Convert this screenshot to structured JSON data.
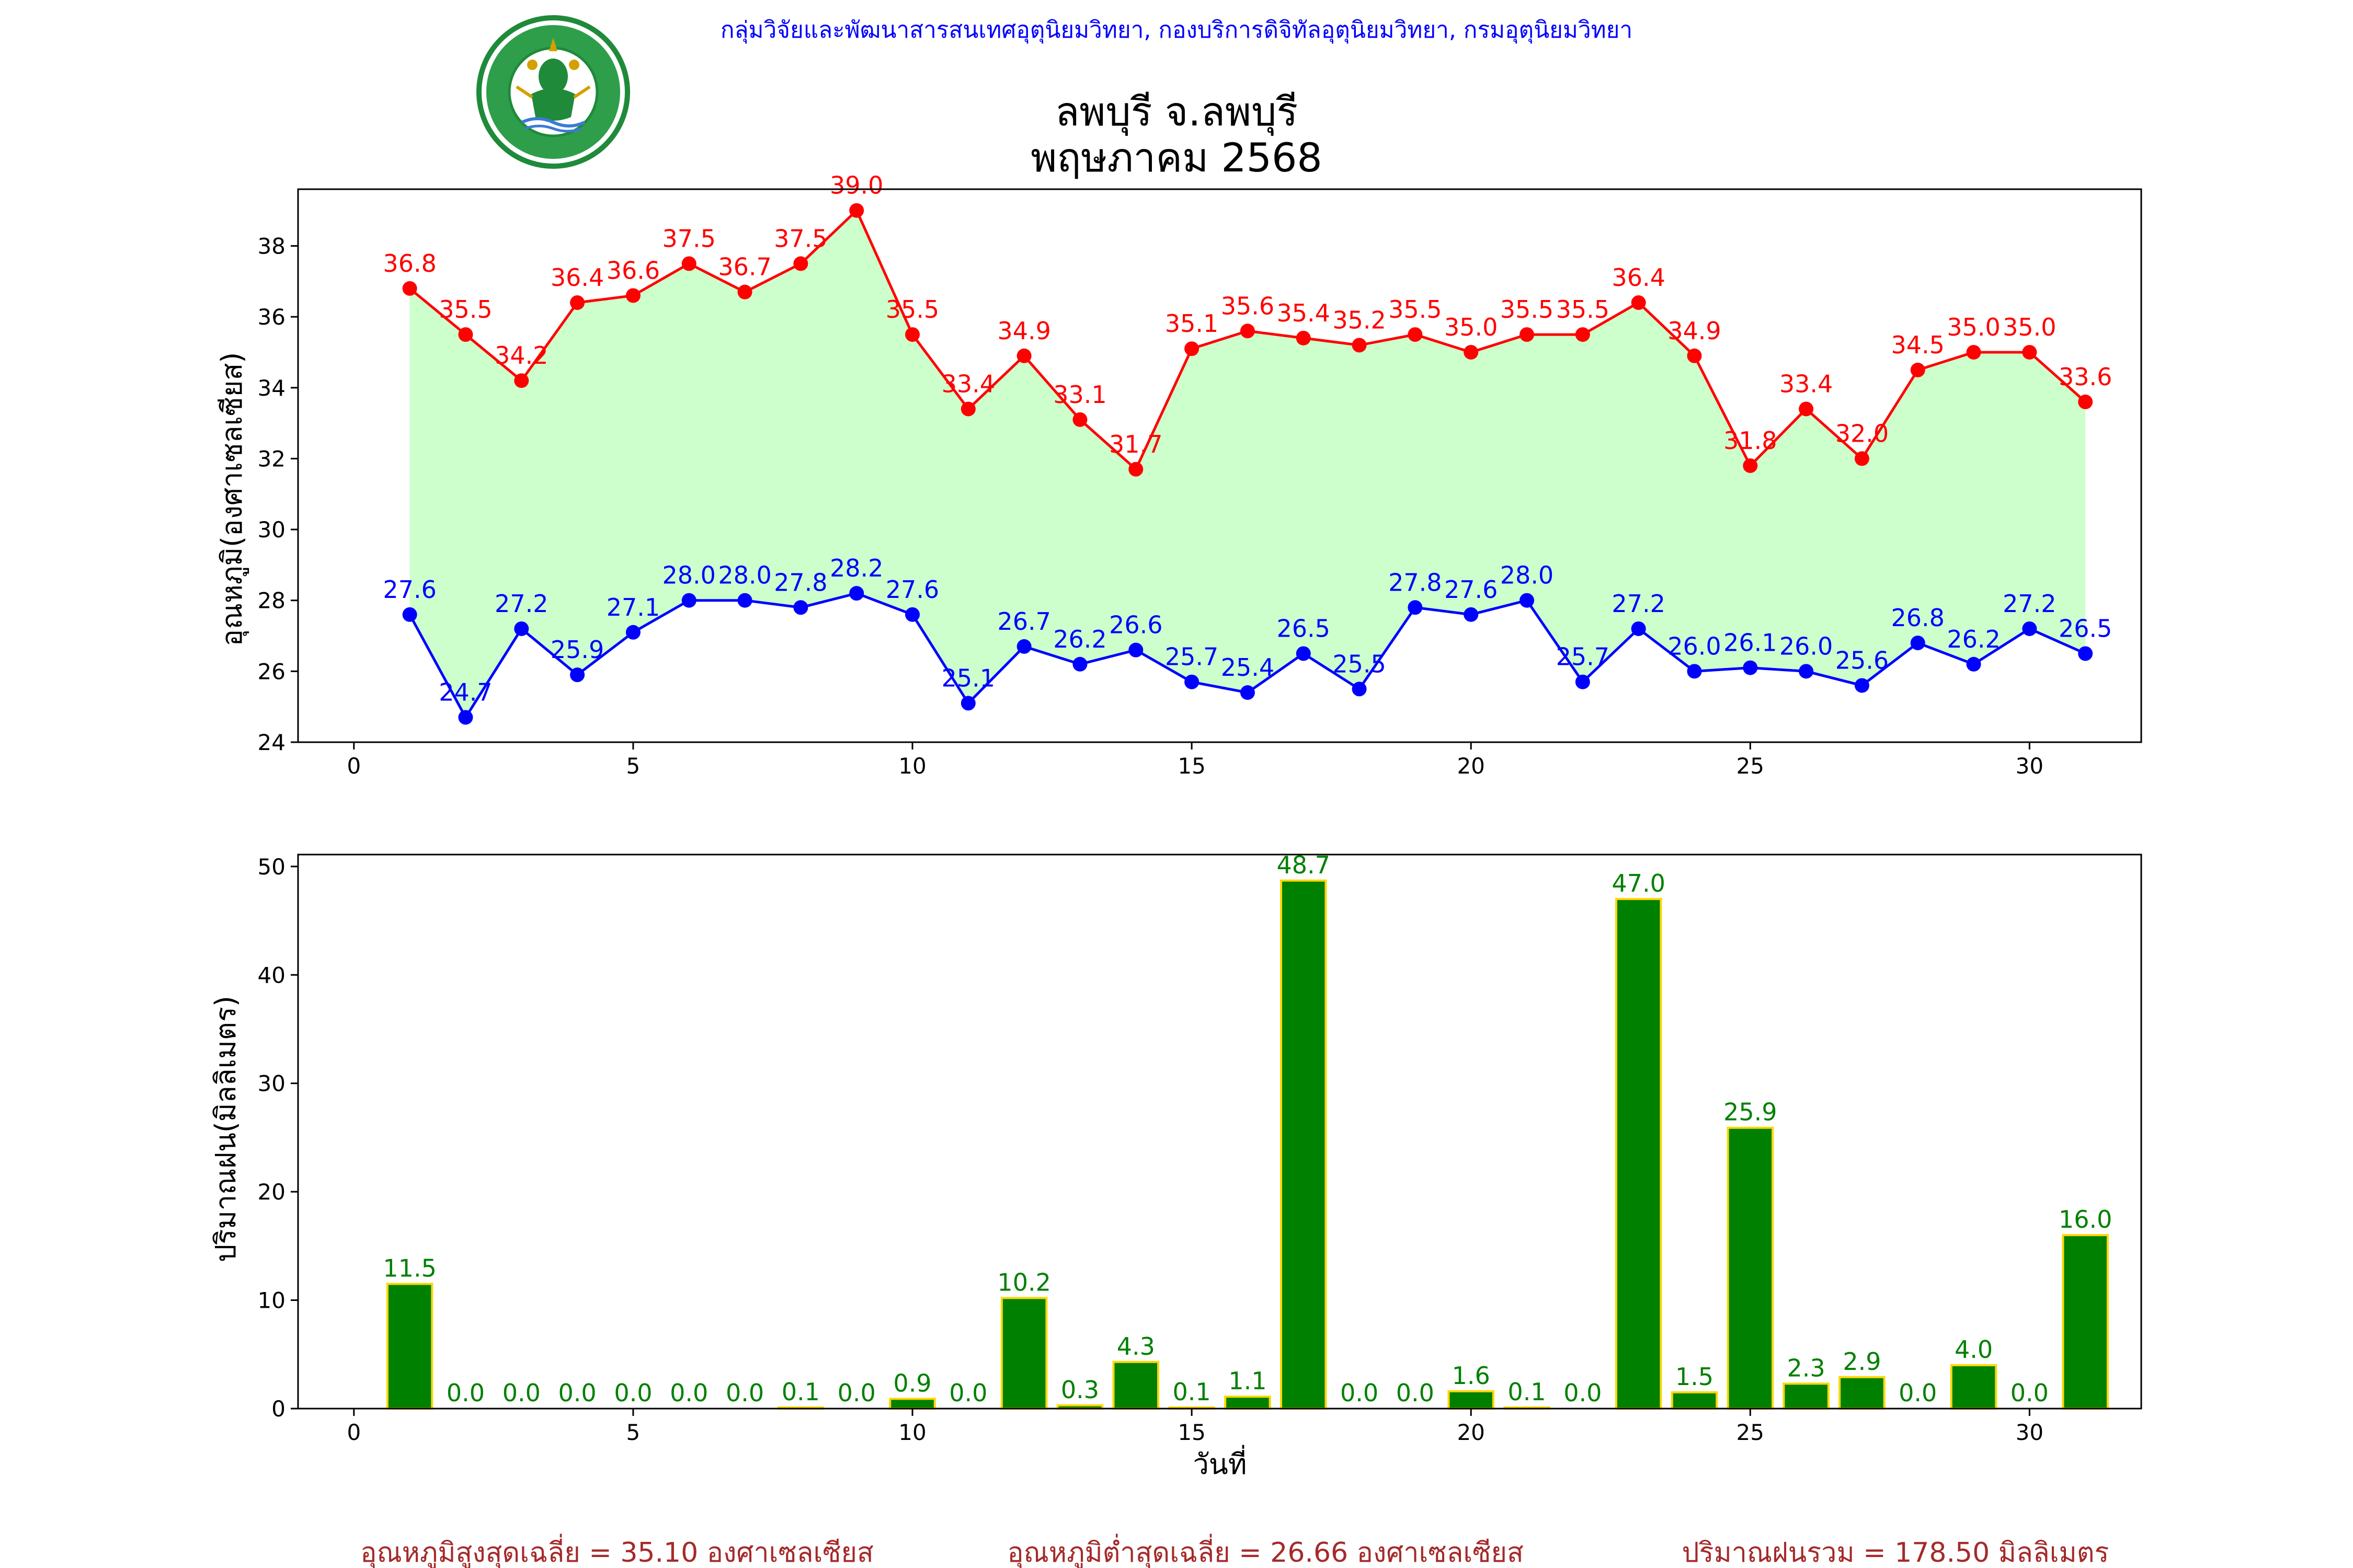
{
  "header": {
    "org_line": "กลุ่มวิจัยและพัฒนาสารสนเทศอุตุนิยมวิทยา, กองบริการดิจิทัลอุตุนิยมวิทยา, กรมอุตุนิยมวิทยา",
    "logo_text": "กรมอุตุนิยมวิทยา METEOROLOGICAL DEPARTMENT"
  },
  "colors": {
    "header_text": "#0000ff",
    "max_line": "#ff0000",
    "min_line": "#0000ff",
    "fill": "#ccffcc",
    "bar_fill": "#008000",
    "bar_edge": "#ffd700",
    "bar_label": "#008000",
    "footer_text": "#a52a2a",
    "logo_green": "#1f8a3a"
  },
  "footer": {
    "avg_max": "อุณหภูมิสูงสุดเฉลี่ย = 35.10 องศาเซลเซียส",
    "avg_min": "อุณหภูมิต่ำสุดเฉลี่ย = 26.66 องศาเซลเซียส",
    "total_rain": "ปริมาณฝนรวม = 178.50 มิลลิเมตร"
  },
  "chart_data": [
    {
      "type": "line",
      "title": "ลพบุรี จ.ลพบุรี",
      "subtitle": "พฤษภาคม 2568",
      "ylabel": "อุณหภูมิ(องศาเซลเซียส)",
      "xlabel": "",
      "xlim": [
        -1,
        32
      ],
      "ylim": [
        24,
        39.6
      ],
      "xticks": [
        0,
        5,
        10,
        15,
        20,
        25,
        30
      ],
      "yticks": [
        24,
        26,
        28,
        30,
        32,
        34,
        36,
        38
      ],
      "fill_between": true,
      "x": [
        1,
        2,
        3,
        4,
        5,
        6,
        7,
        8,
        9,
        10,
        11,
        12,
        13,
        14,
        15,
        16,
        17,
        18,
        19,
        20,
        21,
        22,
        23,
        24,
        25,
        26,
        27,
        28,
        29,
        30,
        31
      ],
      "series": [
        {
          "key": "max",
          "values": [
            36.8,
            35.5,
            34.2,
            36.4,
            36.6,
            37.5,
            36.7,
            37.5,
            39.0,
            35.5,
            33.4,
            34.9,
            33.1,
            31.7,
            35.1,
            35.6,
            35.4,
            35.2,
            35.5,
            35.0,
            35.5,
            35.5,
            36.4,
            34.9,
            31.8,
            33.4,
            32.0,
            34.5,
            35.0,
            35.0,
            33.6
          ],
          "labels": [
            "36.8",
            "35.5",
            "34.2",
            "36.4",
            "36.6",
            "37.5",
            "36.7",
            "37.5",
            "39.0",
            "35.5",
            "33.4",
            "34.9",
            "33.1",
            "31.7",
            "35.1",
            "35.6",
            "35.4",
            "35.2",
            "35.5",
            "35.0",
            "35.5",
            "35.5",
            "36.4",
            "34.9",
            "31.8",
            "33.4",
            "32.0",
            "34.5",
            "35.0",
            "35.0",
            "33.6"
          ]
        },
        {
          "key": "min",
          "values": [
            27.6,
            24.7,
            27.2,
            25.9,
            27.1,
            28.0,
            28.0,
            27.8,
            28.2,
            27.6,
            25.1,
            26.7,
            26.2,
            26.6,
            25.7,
            25.4,
            26.5,
            25.5,
            27.8,
            27.6,
            28.0,
            25.7,
            27.2,
            26.0,
            26.1,
            26.0,
            25.6,
            26.8,
            26.2,
            27.2,
            26.5
          ],
          "labels": [
            "27.6",
            "24.7",
            "27.2",
            "25.9",
            "27.1",
            "28.0",
            "28.0",
            "27.8",
            "28.2",
            "27.6",
            "25.1",
            "26.7",
            "26.2",
            "26.6",
            "25.7",
            "25.4",
            "26.5",
            "25.5",
            "27.8",
            "27.6",
            "28.0",
            "25.7",
            "27.2",
            "26.0",
            "26.1",
            "26.0",
            "25.6",
            "26.8",
            "26.2",
            "27.2",
            "26.5"
          ]
        }
      ]
    },
    {
      "type": "bar",
      "ylabel": "ปริมาณฝน(มิลลิเมตร)",
      "xlabel": "วันที่",
      "xlim": [
        -1,
        32
      ],
      "ylim": [
        0,
        51.1
      ],
      "xticks": [
        0,
        5,
        10,
        15,
        20,
        25,
        30
      ],
      "yticks": [
        0,
        10,
        20,
        30,
        40,
        50
      ],
      "x": [
        1,
        2,
        3,
        4,
        5,
        6,
        7,
        8,
        9,
        10,
        11,
        12,
        13,
        14,
        15,
        16,
        17,
        18,
        19,
        20,
        21,
        22,
        23,
        24,
        25,
        26,
        27,
        28,
        29,
        30,
        31
      ],
      "values": [
        11.5,
        0.0,
        0.0,
        0.0,
        0.0,
        0.0,
        0.0,
        0.1,
        0.0,
        0.9,
        0.0,
        10.2,
        0.3,
        4.3,
        0.1,
        1.1,
        48.7,
        0.0,
        0.0,
        1.6,
        0.1,
        0.0,
        47.0,
        1.5,
        25.9,
        2.3,
        2.9,
        0.0,
        4.0,
        0.0,
        16.0
      ],
      "labels": [
        "11.5",
        "0.0",
        "0.0",
        "0.0",
        "0.0",
        "0.0",
        "0.0",
        "0.1",
        "0.0",
        "0.9",
        "0.0",
        "10.2",
        "0.3",
        "4.3",
        "0.1",
        "1.1",
        "48.7",
        "0.0",
        "0.0",
        "1.6",
        "0.1",
        "0.0",
        "47.0",
        "1.5",
        "25.9",
        "2.3",
        "2.9",
        "0.0",
        "4.0",
        "0.0",
        "16.0"
      ]
    }
  ]
}
